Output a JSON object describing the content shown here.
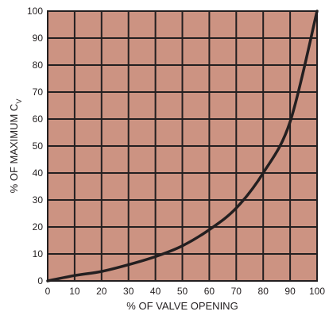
{
  "chart_data": {
    "type": "line",
    "title": "",
    "xlabel": "% OF VALVE OPENING",
    "ylabel": "% OF MAXIMUM C",
    "ylabel_subscript": "V",
    "xlim": [
      0,
      100
    ],
    "ylim": [
      0,
      100
    ],
    "grid": true,
    "x_ticks": [
      "0",
      "10",
      "20",
      "30",
      "40",
      "50",
      "60",
      "70",
      "80",
      "90",
      "100"
    ],
    "y_ticks": [
      "0",
      "10",
      "20",
      "30",
      "40",
      "50",
      "60",
      "70",
      "80",
      "90",
      "100"
    ],
    "series": [
      {
        "x": [
          0,
          10,
          20,
          30,
          40,
          50,
          60,
          70,
          80,
          90,
          100
        ],
        "y": [
          0,
          2,
          3.5,
          6,
          9,
          13,
          19,
          27,
          40,
          59,
          100
        ]
      }
    ],
    "colors": {
      "plot_background": "#cc9382",
      "grid": "#231f20",
      "curve": "#231f20",
      "text": "#231f20"
    }
  }
}
